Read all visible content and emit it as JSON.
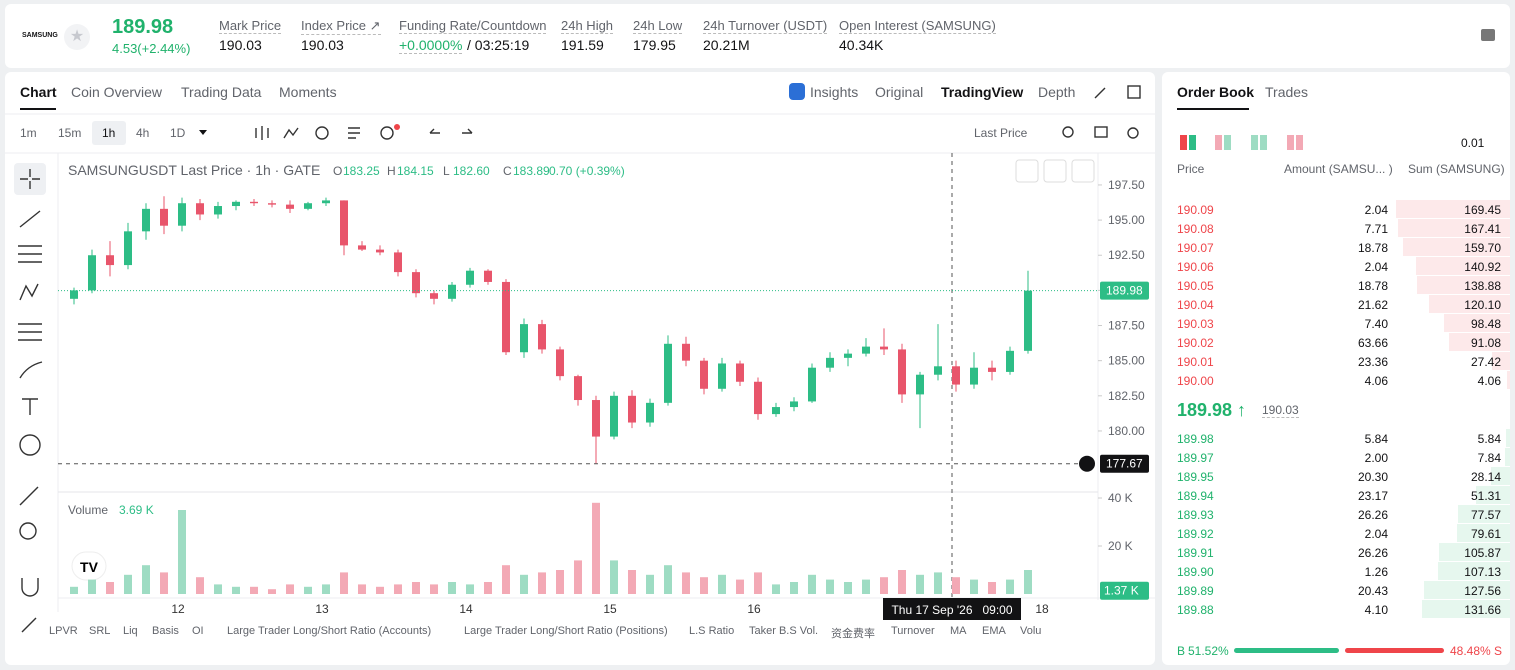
{
  "header": {
    "logo": "SAMSUNG",
    "price": "189.98",
    "change": "4.53(+2.44%)",
    "stats": [
      {
        "label": "Mark Price",
        "value": "190.03"
      },
      {
        "label": "Index Price ↗",
        "value": "190.03"
      },
      {
        "label": "Funding Rate/Countdown",
        "value": "+0.0000%",
        "extra": "/ 03:25:19"
      },
      {
        "label": "24h High",
        "value": "191.59"
      },
      {
        "label": "24h Low",
        "value": "179.95"
      },
      {
        "label": "24h Turnover (USDT)",
        "value": "20.21M"
      },
      {
        "label": "Open Interest (SAMSUNG)",
        "value": "40.34K"
      }
    ]
  },
  "tabs": {
    "left": [
      "Chart",
      "Coin Overview",
      "Trading Data",
      "Moments"
    ],
    "right": [
      "Insights",
      "Original",
      "TradingView",
      "Depth"
    ]
  },
  "intervals": [
    "1m",
    "15m",
    "1h",
    "4h",
    "1D"
  ],
  "price_source": "Last Price",
  "indicators": [
    "LPVR",
    "SRL",
    "Liq",
    "Basis",
    "OI",
    "Large Trader Long/Short Ratio (Accounts)",
    "Large Trader Long/Short Ratio (Positions)",
    "L.S Ratio",
    "Taker B.S Vol.",
    "资金费率",
    "Turnover",
    "MA",
    "EMA",
    "Volu"
  ],
  "chart_data": {
    "type": "candlestick",
    "title": "SAMSUNGUSDT Last Price · 1h · GATE",
    "ohlc": [
      {
        "key": "O",
        "value": "183.25"
      },
      {
        "key": "H",
        "value": "184.15"
      },
      {
        "key": "L",
        "value": "182.60"
      },
      {
        "key": "C",
        "value": "183.89"
      },
      {
        "key": "",
        "value": "0.70 (+0.39%)"
      }
    ],
    "up_color": "#2dbd86",
    "down_color": "#e8556b",
    "vol_up_color": "#9edcc3",
    "vol_down_color": "#f3a9b5",
    "ylim": [
      175.8,
      199.63
    ],
    "yticks": [
      {
        "value": 197.5,
        "label": "197.50"
      },
      {
        "value": 195,
        "label": "195.00"
      },
      {
        "value": 192.5,
        "label": "192.50"
      },
      {
        "value": 190,
        "label": "190.00"
      },
      {
        "value": 187.5,
        "label": "187.50"
      },
      {
        "value": 185,
        "label": "185.00"
      },
      {
        "value": 182.5,
        "label": "182.50"
      },
      {
        "value": 180,
        "label": "180.00"
      }
    ],
    "volume_title": "Volume",
    "volume_current": {
      "value": 3690,
      "label": "3.69 K"
    },
    "volume_last": {
      "value": 1370,
      "label": "1.37 K"
    },
    "vlim": [
      0,
      45000
    ],
    "vticks": [
      {
        "value": 40000,
        "label": "40 K"
      },
      {
        "value": 20000,
        "label": "20 K"
      }
    ],
    "last_price": 189.98,
    "crosshair_price": 177.67,
    "crosshair_time": "Thu 17 Sep '26   09:00",
    "day_labels": [
      "12",
      "13",
      "14",
      "15",
      "16",
      "18"
    ],
    "candles": [
      [
        189.4,
        190.2,
        189.0,
        190.0
      ],
      [
        190.0,
        192.9,
        189.8,
        192.5
      ],
      [
        192.5,
        193.5,
        191.0,
        191.8
      ],
      [
        191.8,
        194.8,
        191.5,
        194.2
      ],
      [
        194.2,
        196.2,
        193.6,
        195.8
      ],
      [
        195.8,
        196.7,
        194.0,
        194.6
      ],
      [
        194.6,
        196.6,
        194.2,
        196.2
      ],
      [
        196.2,
        196.5,
        195.0,
        195.4
      ],
      [
        195.4,
        196.3,
        195.1,
        196.0
      ],
      [
        196.0,
        196.4,
        195.7,
        196.3
      ],
      [
        196.3,
        196.5,
        196.0,
        196.2
      ],
      [
        196.2,
        196.4,
        195.9,
        196.1
      ],
      [
        196.1,
        196.4,
        195.5,
        195.8
      ],
      [
        195.8,
        196.3,
        195.7,
        196.2
      ],
      [
        196.2,
        196.6,
        196.0,
        196.4
      ],
      [
        196.4,
        196.4,
        192.5,
        193.2
      ],
      [
        193.2,
        193.5,
        192.8,
        192.9
      ],
      [
        192.9,
        193.2,
        192.5,
        192.7
      ],
      [
        192.7,
        192.9,
        191.0,
        191.3
      ],
      [
        191.3,
        191.5,
        189.5,
        189.8
      ],
      [
        189.8,
        190.0,
        189.0,
        189.4
      ],
      [
        189.4,
        190.6,
        189.2,
        190.4
      ],
      [
        190.4,
        191.6,
        190.2,
        191.4
      ],
      [
        191.4,
        191.5,
        190.4,
        190.6
      ],
      [
        190.6,
        190.8,
        185.4,
        185.6
      ],
      [
        185.6,
        188.0,
        185.2,
        187.6
      ],
      [
        187.6,
        187.9,
        185.5,
        185.8
      ],
      [
        185.8,
        186.0,
        183.6,
        183.9
      ],
      [
        183.9,
        184.0,
        181.8,
        182.2
      ],
      [
        182.2,
        182.5,
        177.67,
        179.6
      ],
      [
        179.6,
        182.8,
        179.4,
        182.5
      ],
      [
        182.5,
        182.9,
        180.2,
        180.6
      ],
      [
        180.6,
        182.3,
        180.3,
        182.0
      ],
      [
        182.0,
        186.8,
        181.8,
        186.2
      ],
      [
        186.2,
        186.7,
        184.6,
        185.0
      ],
      [
        185.0,
        185.2,
        182.6,
        183.0
      ],
      [
        183.0,
        185.2,
        182.8,
        184.8
      ],
      [
        184.8,
        185.0,
        183.2,
        183.5
      ],
      [
        183.5,
        183.8,
        180.8,
        181.2
      ],
      [
        181.2,
        182.0,
        181.0,
        181.7
      ],
      [
        181.7,
        182.4,
        181.4,
        182.1
      ],
      [
        182.1,
        184.8,
        182.0,
        184.5
      ],
      [
        184.5,
        185.6,
        184.2,
        185.2
      ],
      [
        185.2,
        185.8,
        184.6,
        185.5
      ],
      [
        185.5,
        186.6,
        185.3,
        186.0
      ],
      [
        186.0,
        187.3,
        185.4,
        185.8
      ],
      [
        185.8,
        186.2,
        182.0,
        182.6
      ],
      [
        182.6,
        184.2,
        180.2,
        184.0
      ],
      [
        184.0,
        187.6,
        183.6,
        184.6
      ],
      [
        184.6,
        185.0,
        182.8,
        183.3
      ],
      [
        183.3,
        185.6,
        183.0,
        184.5
      ],
      [
        184.5,
        185.0,
        183.6,
        184.2
      ],
      [
        184.2,
        186.0,
        184.0,
        185.7
      ],
      [
        185.7,
        191.4,
        185.5,
        189.98
      ]
    ],
    "volume": [
      3000,
      6000,
      5000,
      8000,
      12000,
      9000,
      35000,
      7000,
      4000,
      3000,
      3000,
      2000,
      4000,
      3000,
      4000,
      9000,
      4000,
      3000,
      4000,
      5000,
      4000,
      5000,
      4000,
      5000,
      12000,
      8000,
      9000,
      10000,
      14000,
      38000,
      14000,
      10000,
      8000,
      12000,
      9000,
      7000,
      8000,
      6000,
      9000,
      4000,
      5000,
      8000,
      6000,
      5000,
      6000,
      7000,
      10000,
      8000,
      9000,
      7000,
      6000,
      5000,
      6000,
      10000
    ]
  },
  "order_book": {
    "tabs": [
      "Order Book",
      "Trades"
    ],
    "tick": "0.01",
    "columns": [
      "Price",
      "Amount (SAMSU... )",
      "Sum (SAMSUNG)"
    ],
    "asks": [
      [
        "190.09",
        "2.04",
        "169.45"
      ],
      [
        "190.08",
        "7.71",
        "167.41"
      ],
      [
        "190.07",
        "18.78",
        "159.70"
      ],
      [
        "190.06",
        "2.04",
        "140.92"
      ],
      [
        "190.05",
        "18.78",
        "138.88"
      ],
      [
        "190.04",
        "21.62",
        "120.10"
      ],
      [
        "190.03",
        "7.40",
        "98.48"
      ],
      [
        "190.02",
        "63.66",
        "91.08"
      ],
      [
        "190.01",
        "23.36",
        "27.42"
      ],
      [
        "190.00",
        "4.06",
        "4.06"
      ]
    ],
    "mid": "189.98 ↑",
    "mark": "190.03",
    "bids": [
      [
        "189.98",
        "5.84",
        "5.84"
      ],
      [
        "189.97",
        "2.00",
        "7.84"
      ],
      [
        "189.95",
        "20.30",
        "28.14"
      ],
      [
        "189.94",
        "23.17",
        "51.31"
      ],
      [
        "189.93",
        "26.26",
        "77.57"
      ],
      [
        "189.92",
        "2.04",
        "79.61"
      ],
      [
        "189.91",
        "26.26",
        "105.87"
      ],
      [
        "189.90",
        "1.26",
        "107.13"
      ],
      [
        "189.89",
        "20.43",
        "127.56"
      ],
      [
        "189.88",
        "4.10",
        "131.66"
      ]
    ],
    "buy_key": "B",
    "buy": "51.52%",
    "sell": "48.48%",
    "sell_key": "S"
  }
}
